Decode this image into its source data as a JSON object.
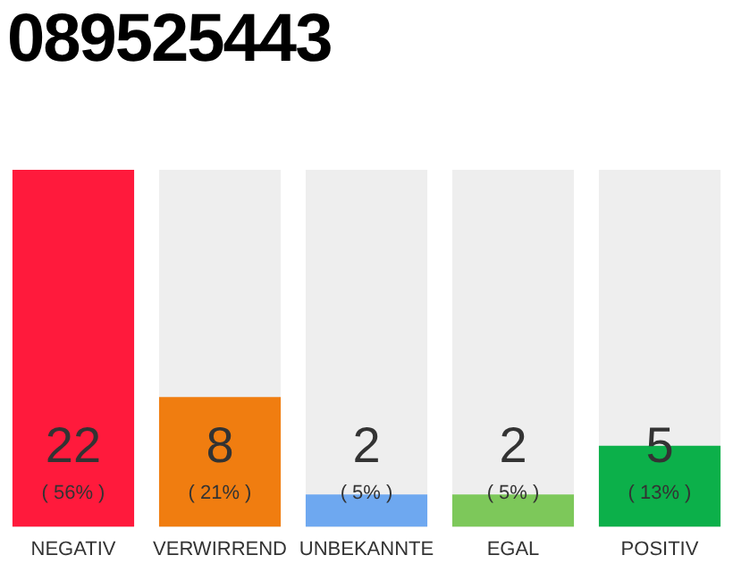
{
  "chart_data": {
    "type": "bar",
    "title": "089525443",
    "categories": [
      "NEGATIV",
      "VERWIRREND",
      "UNBEKANNTE",
      "EGAL",
      "POSITIV"
    ],
    "values": [
      22,
      8,
      2,
      2,
      5
    ],
    "colors": [
      "#ff1a3c",
      "#f07d10",
      "#6ea8f0",
      "#7dc85a",
      "#0cb04a"
    ],
    "data_labels": true,
    "annotations": [
      "( 56% )",
      "( 21% )",
      "( 5% )",
      "( 5% )",
      "( 13% )"
    ],
    "grid": false,
    "legend": false
  }
}
